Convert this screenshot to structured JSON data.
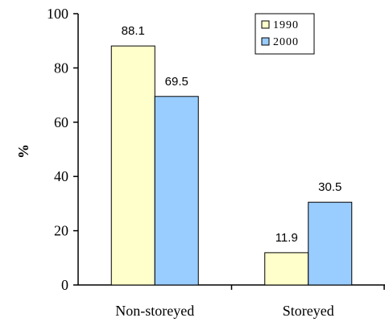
{
  "chart_data": {
    "type": "bar",
    "title": "",
    "xlabel": "",
    "ylabel": "%",
    "ylim": [
      0,
      100
    ],
    "yticks": [
      0,
      20,
      40,
      60,
      80,
      100
    ],
    "grid": false,
    "legend_position": "top-right",
    "categories": [
      "Non-storeyed",
      "Storeyed"
    ],
    "series": [
      {
        "name": "1990",
        "values": [
          88.1,
          11.9
        ],
        "color": "#ffffcc"
      },
      {
        "name": "2000",
        "values": [
          69.5,
          30.5
        ],
        "color": "#99ccff"
      }
    ]
  }
}
